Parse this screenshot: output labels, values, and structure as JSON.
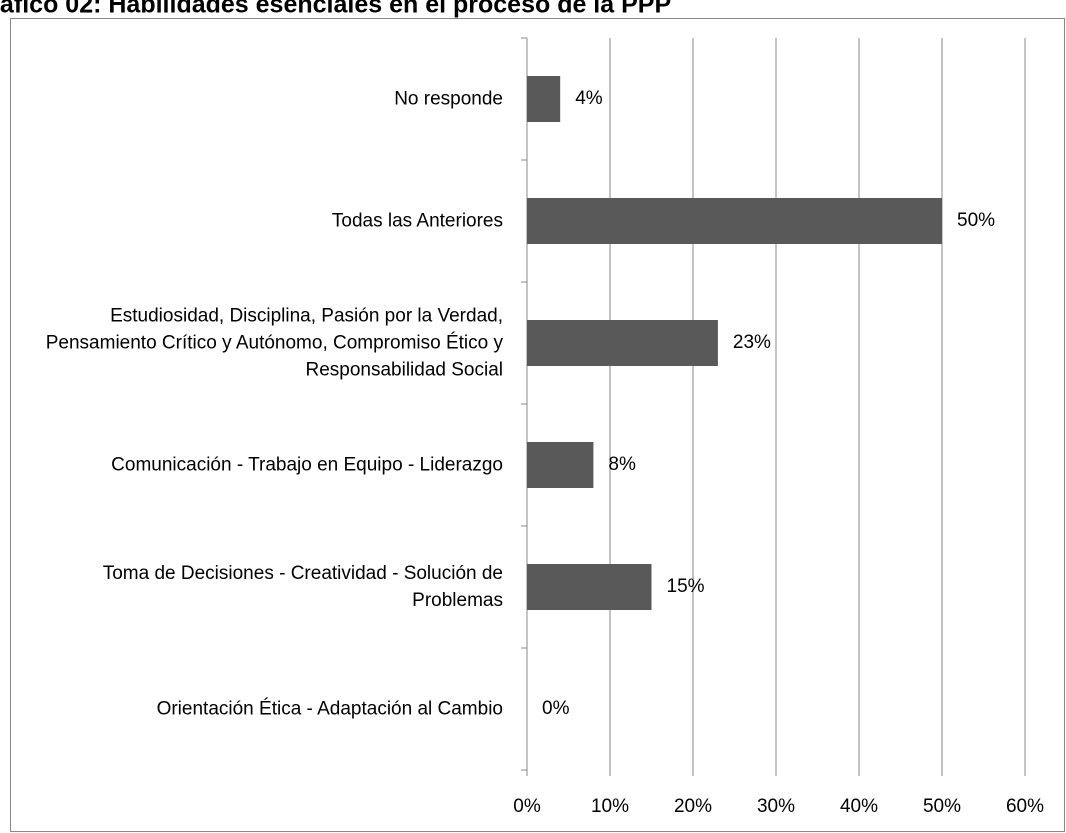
{
  "chart_data": {
    "type": "barh",
    "title": "áfico 02: Habilidades esenciales en el proceso de la PPP",
    "categories": [
      "No responde",
      "Todas las Anteriores",
      "Estudiosidad, Disciplina, Pasión por la Verdad, Pensamiento Crítico y Autónomo, Compromiso Ético y Responsabilidad Social",
      "Comunicación - Trabajo en Equipo - Liderazgo",
      "Toma de Decisiones -  Creatividad - Solución de Problemas",
      "Orientación Ética - Adaptación al Cambio"
    ],
    "values": [
      4,
      50,
      23,
      8,
      15,
      0
    ],
    "value_labels": [
      "4%",
      "50%",
      "23%",
      "8%",
      "15%",
      "0%"
    ],
    "color": "#595959",
    "xlim": [
      0,
      60
    ],
    "xticks": [
      {
        "value": 0,
        "label": "0%"
      },
      {
        "value": 10,
        "label": "10%"
      },
      {
        "value": 20,
        "label": "20%"
      },
      {
        "value": 30,
        "label": "30%"
      },
      {
        "value": 40,
        "label": "40%"
      },
      {
        "value": 50,
        "label": "50%"
      },
      {
        "value": 60,
        "label": "60%"
      }
    ],
    "grid": true
  }
}
